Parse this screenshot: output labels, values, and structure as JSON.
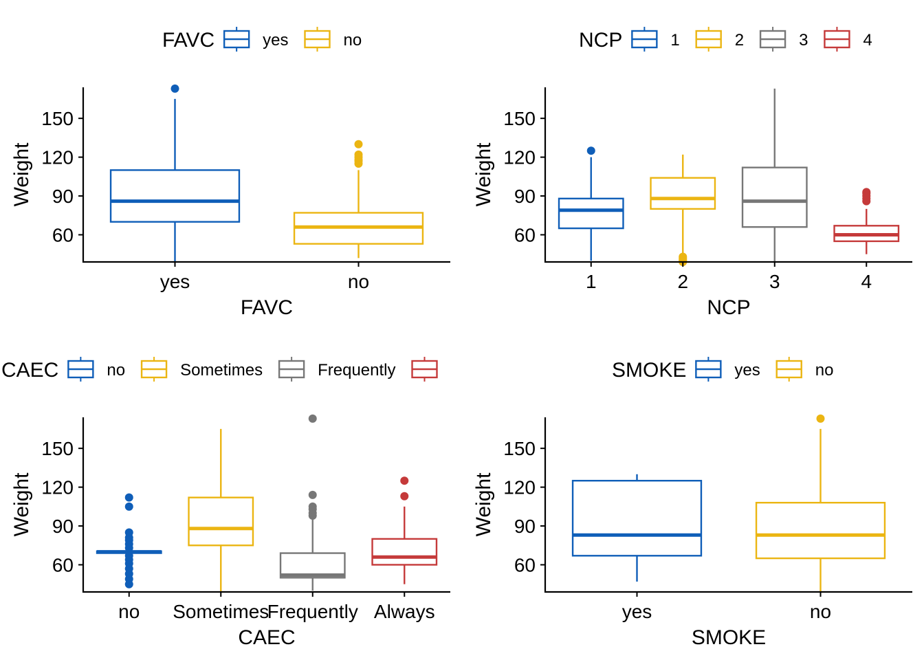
{
  "colors": {
    "palette": [
      "#0F5EB8",
      "#EBB512",
      "#777777",
      "#C53A3A"
    ],
    "axis": "#000000"
  },
  "chart_data": [
    {
      "type": "box",
      "panel": "top-left",
      "legend": {
        "title": "FAVC",
        "placement": "top",
        "entries": [
          "yes",
          "no"
        ]
      },
      "categories": [
        "yes",
        "no"
      ],
      "xlabel": "FAVC",
      "ylabel": "Weight",
      "ylim": [
        39,
        174
      ],
      "yticks": [
        60,
        90,
        120,
        150
      ],
      "grid": false,
      "series": [
        {
          "name": "yes",
          "q1": 70,
          "median": 86,
          "q3": 110,
          "whisker_low": 39,
          "whisker_high": 165,
          "outliers": [
            173
          ]
        },
        {
          "name": "no",
          "q1": 53,
          "median": 66,
          "q3": 77,
          "whisker_low": 42,
          "whisker_high": 110,
          "outliers": [
            115,
            117,
            118,
            120,
            122,
            130
          ]
        }
      ]
    },
    {
      "type": "box",
      "panel": "top-right",
      "legend": {
        "title": "NCP",
        "placement": "top",
        "entries": [
          "1",
          "2",
          "3",
          "4"
        ]
      },
      "categories": [
        "1",
        "2",
        "3",
        "4"
      ],
      "xlabel": "NCP",
      "ylabel": "Weight",
      "ylim": [
        39,
        174
      ],
      "yticks": [
        60,
        90,
        120,
        150
      ],
      "grid": false,
      "series": [
        {
          "name": "1",
          "q1": 65,
          "median": 79,
          "q3": 88,
          "whisker_low": 40,
          "whisker_high": 120,
          "outliers": [
            125
          ]
        },
        {
          "name": "2",
          "q1": 80,
          "median": 88,
          "q3": 104,
          "whisker_low": 45,
          "whisker_high": 122,
          "outliers": [
            39,
            40,
            41,
            42,
            43
          ]
        },
        {
          "name": "3",
          "q1": 66,
          "median": 86,
          "q3": 112,
          "whisker_low": 39,
          "whisker_high": 173,
          "outliers": []
        },
        {
          "name": "4",
          "q1": 55,
          "median": 60,
          "q3": 67,
          "whisker_low": 45,
          "whisker_high": 80,
          "outliers": [
            86,
            88,
            90,
            92,
            93
          ]
        }
      ]
    },
    {
      "type": "box",
      "panel": "bottom-left",
      "legend": {
        "title": "CAEC",
        "placement": "top",
        "entries": [
          "no",
          "Sometimes",
          "Frequently",
          ""
        ]
      },
      "categories": [
        "no",
        "Sometimes",
        "Frequently",
        "Always"
      ],
      "xlabel": "CAEC",
      "ylabel": "Weight",
      "ylim": [
        39,
        174
      ],
      "yticks": [
        60,
        90,
        120,
        150
      ],
      "grid": false,
      "series": [
        {
          "name": "no",
          "q1": 69,
          "median": 70,
          "q3": 70.5,
          "whisker_low": 69,
          "whisker_high": 70.5,
          "outliers": [
            45,
            49,
            53,
            57,
            61,
            64,
            67,
            73,
            76,
            79,
            81,
            85,
            105,
            112
          ]
        },
        {
          "name": "Sometimes",
          "q1": 75,
          "median": 88,
          "q3": 112,
          "whisker_low": 39,
          "whisker_high": 165,
          "outliers": []
        },
        {
          "name": "Frequently",
          "q1": 50,
          "median": 52,
          "q3": 69,
          "whisker_low": 40,
          "whisker_high": 95,
          "outliers": [
            98,
            100,
            103,
            105,
            114,
            173
          ]
        },
        {
          "name": "Always",
          "q1": 60,
          "median": 66,
          "q3": 80,
          "whisker_low": 45,
          "whisker_high": 105,
          "outliers": [
            113,
            125
          ]
        }
      ]
    },
    {
      "type": "box",
      "panel": "bottom-right",
      "legend": {
        "title": "SMOKE",
        "placement": "top",
        "entries": [
          "yes",
          "no"
        ]
      },
      "categories": [
        "yes",
        "no"
      ],
      "xlabel": "SMOKE",
      "ylabel": "Weight",
      "ylim": [
        39,
        174
      ],
      "yticks": [
        60,
        90,
        120,
        150
      ],
      "grid": false,
      "series": [
        {
          "name": "yes",
          "q1": 67,
          "median": 83,
          "q3": 125,
          "whisker_low": 47,
          "whisker_high": 130,
          "outliers": []
        },
        {
          "name": "no",
          "q1": 65,
          "median": 83,
          "q3": 108,
          "whisker_low": 39,
          "whisker_high": 165,
          "outliers": [
            173
          ]
        }
      ]
    }
  ]
}
